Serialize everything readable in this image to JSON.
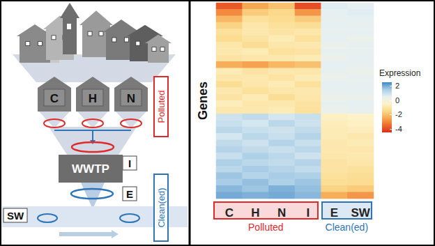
{
  "diagram": {
    "sources": [
      "C",
      "H",
      "N"
    ],
    "influent": "I",
    "plant": "WWTP",
    "effluent": "E",
    "river": "SW",
    "zones": [
      {
        "label": "Polluted",
        "color": "#e02a2a"
      },
      {
        "label": "Clean(ed)",
        "color": "#2e75b6"
      }
    ]
  },
  "chart_data": {
    "type": "heatmap",
    "categories": [
      "C",
      "H",
      "N",
      "I",
      "E",
      "SW"
    ],
    "rows": [
      null,
      null,
      null,
      null,
      null,
      null,
      null,
      null,
      null,
      null,
      null,
      null,
      null,
      null,
      null,
      null,
      null,
      null,
      null,
      null,
      null,
      null,
      null,
      null,
      null,
      null,
      null,
      null,
      null,
      null
    ],
    "y_label": "Genes",
    "tick_labels": "x",
    "grid": false,
    "groups": [
      {
        "label": "Polluted",
        "color": "#e02a2a",
        "columns": [
          "C",
          "H",
          "N",
          "I"
        ]
      },
      {
        "label": "Clean(ed)",
        "color": "#2e75b6",
        "columns": [
          "E",
          "SW"
        ]
      }
    ],
    "cells": [
      [
        -3.8,
        -2.5,
        -2.0,
        -4.0,
        0.6,
        0.5
      ],
      [
        -3.0,
        -1.8,
        -1.5,
        -2.8,
        0.5,
        0.6
      ],
      [
        -2.2,
        -1.2,
        -1.4,
        -1.8,
        0.4,
        0.5
      ],
      [
        -1.6,
        -1.0,
        -1.2,
        -1.3,
        0.5,
        0.4
      ],
      [
        -1.2,
        -0.9,
        -1.1,
        -1.0,
        0.4,
        0.5
      ],
      [
        -1.4,
        -1.1,
        -0.8,
        -1.2,
        0.5,
        0.3
      ],
      [
        -1.0,
        -1.3,
        -1.0,
        -0.9,
        0.3,
        0.4
      ],
      [
        -0.9,
        -0.8,
        -1.2,
        -1.1,
        0.4,
        0.4
      ],
      [
        -1.1,
        -1.0,
        -0.9,
        -0.8,
        0.3,
        0.5
      ],
      [
        -2.4,
        -2.6,
        -2.2,
        -2.0,
        0.5,
        0.4
      ],
      [
        -0.8,
        -1.1,
        -0.9,
        -1.0,
        0.4,
        0.3
      ],
      [
        -1.0,
        -0.9,
        -1.1,
        -0.8,
        0.3,
        0.4
      ],
      [
        -1.3,
        -1.0,
        -0.8,
        -1.2,
        0.5,
        0.4
      ],
      [
        -0.9,
        -1.2,
        -1.0,
        -0.9,
        0.4,
        0.5
      ],
      [
        -1.1,
        -0.8,
        -1.3,
        -1.0,
        0.3,
        0.3
      ],
      [
        -0.7,
        -1.0,
        -0.9,
        -1.1,
        0.4,
        0.5
      ],
      [
        -1.0,
        -0.9,
        -0.8,
        -1.2,
        0.3,
        0.4
      ],
      [
        0.9,
        1.1,
        0.8,
        1.0,
        -0.6,
        -0.5
      ],
      [
        1.0,
        0.8,
        1.2,
        0.9,
        -0.7,
        -0.6
      ],
      [
        1.2,
        1.0,
        0.9,
        1.1,
        -0.8,
        -0.7
      ],
      [
        0.8,
        1.2,
        1.0,
        1.3,
        -0.8,
        -0.9
      ],
      [
        1.1,
        0.9,
        1.3,
        1.0,
        -0.9,
        -0.8
      ],
      [
        1.3,
        1.1,
        1.0,
        1.2,
        -0.9,
        -1.0
      ],
      [
        1.0,
        1.4,
        1.2,
        0.9,
        -1.0,
        -0.9
      ],
      [
        1.4,
        1.2,
        1.1,
        1.3,
        -1.1,
        -1.0
      ],
      [
        1.2,
        1.5,
        1.3,
        1.1,
        -1.1,
        -1.2
      ],
      [
        1.6,
        1.3,
        1.5,
        1.4,
        -1.2,
        -1.3
      ],
      [
        1.5,
        1.7,
        1.4,
        1.6,
        -1.3,
        -1.4
      ],
      [
        1.8,
        1.6,
        1.9,
        1.7,
        -1.6,
        -1.8
      ],
      [
        2.0,
        1.9,
        2.0,
        1.8,
        -2.4,
        -2.8
      ]
    ],
    "colorbar": {
      "title": "Expression",
      "range": [
        -4.5,
        2.5
      ],
      "ticks": [
        2,
        0,
        -2,
        -4
      ],
      "colors": [
        "#d7301f",
        "#f06a2a",
        "#f5a953",
        "#fbd98a",
        "#fdf2c8",
        "#e6f0f3",
        "#a9cde6",
        "#3f87c4"
      ]
    }
  }
}
